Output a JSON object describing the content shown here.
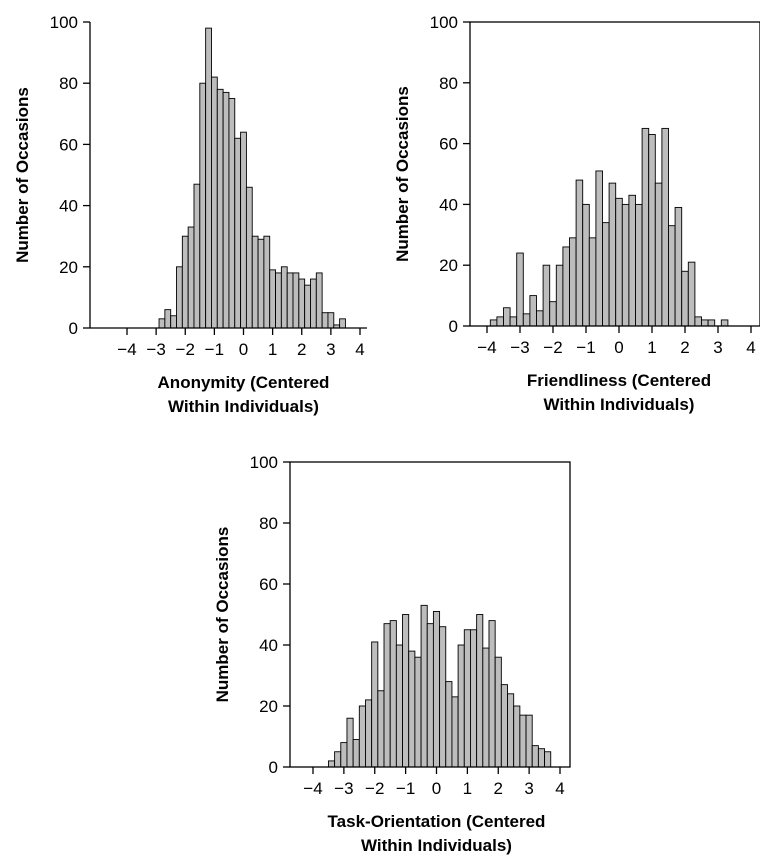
{
  "chart_data": [
    {
      "type": "bar",
      "subtype": "histogram",
      "xlabel": [
        "Anonymity (Centered",
        "Within Individuals)"
      ],
      "ylabel": "Number of Occasions",
      "xlim": [
        -4.5,
        4.5
      ],
      "ylim": [
        0,
        100
      ],
      "x_ticks": [
        -4,
        -3,
        -2,
        -1,
        0,
        1,
        2,
        3,
        4
      ],
      "y_ticks": [
        0,
        20,
        40,
        60,
        80,
        100
      ],
      "bin_width": 0.2,
      "bin_start": -2.9,
      "values": [
        3,
        6,
        4,
        20,
        30,
        33,
        47,
        80,
        98,
        82,
        78,
        77,
        75,
        62,
        64,
        46,
        30,
        29,
        30,
        19,
        18,
        20,
        18,
        18,
        16,
        14,
        16,
        18,
        5,
        5,
        1,
        3
      ],
      "frame": "left-bottom-axes"
    },
    {
      "type": "bar",
      "subtype": "histogram",
      "xlabel": [
        "Friendliness (Centered",
        "Within Individuals)"
      ],
      "ylabel": "Number of Occasions",
      "xlim": [
        -4.8,
        4.5
      ],
      "ylim": [
        0,
        100
      ],
      "x_ticks": [
        -4,
        -3,
        -2,
        -1,
        0,
        1,
        2,
        3,
        4
      ],
      "y_ticks": [
        0,
        20,
        40,
        60,
        80,
        100
      ],
      "bin_width": 0.2,
      "bin_start": -3.9,
      "values": [
        2,
        3,
        6,
        3,
        24,
        4,
        10,
        5,
        20,
        8,
        20,
        26,
        29,
        48,
        40,
        29,
        51,
        34,
        47,
        42,
        40,
        43,
        40,
        65,
        63,
        47,
        65,
        33,
        39,
        18,
        21,
        3,
        2,
        2,
        0,
        2
      ],
      "frame": "box"
    },
    {
      "type": "bar",
      "subtype": "histogram",
      "xlabel": [
        "Task-Orientation (Centered",
        "Within Individuals)"
      ],
      "ylabel": "Number of Occasions",
      "xlim": [
        -4.7,
        4.7
      ],
      "ylim": [
        0,
        100
      ],
      "x_ticks": [
        -4,
        -3,
        -2,
        -1,
        0,
        1,
        2,
        3,
        4
      ],
      "y_ticks": [
        0,
        20,
        40,
        60,
        80,
        100
      ],
      "bin_width": 0.2,
      "bin_start": -3.5,
      "values": [
        2,
        5,
        8,
        16,
        9,
        20,
        22,
        41,
        25,
        47,
        48,
        40,
        50,
        38,
        36,
        53,
        47,
        51,
        46,
        28,
        23,
        40,
        45,
        45,
        50,
        39,
        48,
        36,
        27,
        24,
        20,
        17,
        17,
        7,
        6,
        5
      ],
      "frame": "box"
    }
  ]
}
